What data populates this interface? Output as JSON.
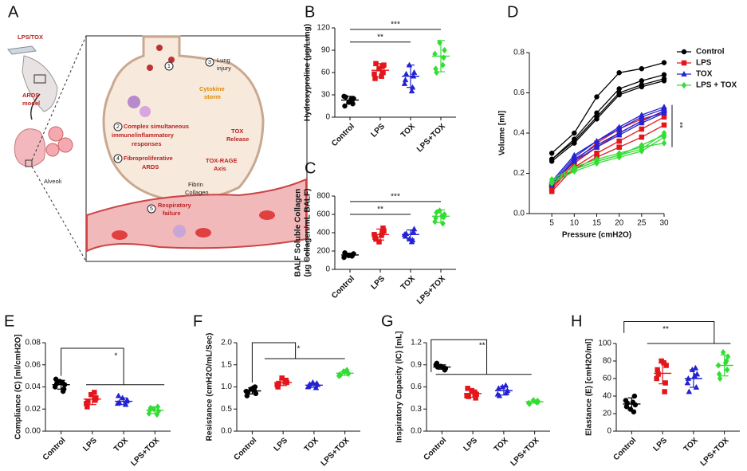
{
  "diagram": {
    "panel": "A",
    "labels": [
      "LPS/TOX",
      "ARDS",
      "model",
      "Alveoli",
      "1",
      "3",
      "Lung",
      "injury",
      "Cytokine",
      "storm",
      "2",
      "Complex simultaneous",
      "immune/inflammatory",
      "responses",
      "TOX",
      "Release",
      "4",
      "Fibroproliferative",
      "ARDS",
      "TOX-RAGE",
      "Axis",
      "Fibrin",
      "Collagen",
      "5",
      "Respiratory",
      "failure"
    ]
  },
  "chart_data": [
    {
      "type": "dot",
      "panel": "B",
      "ylabel": [
        "Hydroxyproline (μg/Lung)"
      ],
      "categories": [
        "Control",
        "LPS",
        "TOX",
        "LPS+TOX"
      ],
      "colors": [
        "#000000",
        "#e3161c",
        "#2323d4",
        "#33dd33"
      ],
      "markers": [
        "circle",
        "square",
        "triangle",
        "diamond"
      ],
      "values": [
        [
          20,
          25,
          28,
          18,
          15,
          22,
          27,
          24
        ],
        [
          65,
          70,
          58,
          60,
          52,
          68,
          72,
          55
        ],
        [
          70,
          60,
          45,
          55,
          50,
          40,
          58,
          35
        ],
        [
          100,
          90,
          85,
          80,
          65,
          70,
          60
        ]
      ],
      "mean": [
        23,
        63,
        55,
        82
      ],
      "sd": [
        5,
        9,
        15,
        21
      ],
      "ylim": [
        0,
        120
      ],
      "yticks": [
        0,
        30,
        60,
        90,
        120
      ],
      "annotations": [
        "**",
        "***"
      ]
    },
    {
      "type": "dot",
      "panel": "C",
      "ylabel": [
        "BALF  Soluble Collagen",
        "(μg Collagen/mL BALF)"
      ],
      "categories": [
        "Control",
        "LPS",
        "TOX",
        "LPS+TOX"
      ],
      "colors": [
        "#000000",
        "#e3161c",
        "#2323d4",
        "#33dd33"
      ],
      "markers": [
        "circle",
        "square",
        "triangle",
        "diamond"
      ],
      "values": [
        [
          150,
          170,
          130,
          160,
          180,
          145,
          165
        ],
        [
          300,
          420,
          380,
          450,
          350,
          400,
          330,
          370
        ],
        [
          330,
          440,
          380,
          410,
          360,
          320,
          390,
          300
        ],
        [
          640,
          600,
          520,
          570,
          560,
          500,
          620,
          580
        ]
      ],
      "mean": [
        157,
        380,
        380,
        580
      ],
      "sd": [
        20,
        60,
        50,
        70
      ],
      "ylim": [
        0,
        800
      ],
      "yticks": [
        0,
        200,
        400,
        600,
        800
      ],
      "annotations": [
        "**",
        "***"
      ]
    },
    {
      "type": "line",
      "panel": "D",
      "ylabel": [
        "Volume [ml]"
      ],
      "xlabel": "Pressure (cmH2O)",
      "x": [
        5,
        10,
        15,
        20,
        25,
        30
      ],
      "xlim": [
        0,
        30
      ],
      "xticks": [
        5,
        10,
        15,
        20,
        25,
        30
      ],
      "ylim": [
        0,
        0.8
      ],
      "yticks": [
        {
          "value": 0,
          "label": "0.0"
        },
        0.2,
        0.4,
        0.6,
        0.8
      ],
      "annotations": [
        "**"
      ],
      "legend": {
        "position": "right",
        "entries": [
          {
            "name": "Control",
            "color": "#000000",
            "marker": "circle"
          },
          {
            "name": "LPS",
            "color": "#e3161c",
            "marker": "square"
          },
          {
            "name": "TOX",
            "color": "#2323d4",
            "marker": "triangle"
          },
          {
            "name": "LPS + TOX",
            "color": "#33dd33",
            "marker": "diamond"
          }
        ]
      },
      "series": [
        {
          "color": "#000000",
          "marker": "circle",
          "values": [
            0.3,
            0.4,
            0.58,
            0.7,
            0.72,
            0.75
          ]
        },
        {
          "color": "#000000",
          "marker": "circle",
          "values": [
            0.27,
            0.37,
            0.5,
            0.62,
            0.66,
            0.69
          ]
        },
        {
          "color": "#000000",
          "marker": "circle",
          "values": [
            0.27,
            0.36,
            0.48,
            0.6,
            0.64,
            0.67
          ]
        },
        {
          "color": "#000000",
          "marker": "circle",
          "values": [
            0.26,
            0.35,
            0.47,
            0.59,
            0.63,
            0.66
          ]
        },
        {
          "color": "#e3161c",
          "marker": "square",
          "values": [
            0.12,
            0.25,
            0.33,
            0.4,
            0.46,
            0.51
          ]
        },
        {
          "color": "#e3161c",
          "marker": "square",
          "values": [
            0.11,
            0.23,
            0.3,
            0.36,
            0.42,
            0.48
          ]
        },
        {
          "color": "#e3161c",
          "marker": "square",
          "values": [
            0.13,
            0.26,
            0.35,
            0.42,
            0.47,
            0.5
          ]
        },
        {
          "color": "#e3161c",
          "marker": "square",
          "values": [
            0.14,
            0.22,
            0.28,
            0.33,
            0.38,
            0.44
          ]
        },
        {
          "color": "#2323d4",
          "marker": "triangle",
          "values": [
            0.15,
            0.28,
            0.36,
            0.42,
            0.48,
            0.52
          ]
        },
        {
          "color": "#2323d4",
          "marker": "triangle",
          "values": [
            0.14,
            0.27,
            0.34,
            0.4,
            0.46,
            0.51
          ]
        },
        {
          "color": "#2323d4",
          "marker": "triangle",
          "values": [
            0.15,
            0.26,
            0.33,
            0.39,
            0.45,
            0.5
          ]
        },
        {
          "color": "#2323d4",
          "marker": "triangle",
          "values": [
            0.16,
            0.29,
            0.36,
            0.43,
            0.49,
            0.53
          ]
        },
        {
          "color": "#33dd33",
          "marker": "diamond",
          "values": [
            0.16,
            0.22,
            0.26,
            0.29,
            0.32,
            0.4
          ]
        },
        {
          "color": "#33dd33",
          "marker": "diamond",
          "values": [
            0.15,
            0.21,
            0.25,
            0.28,
            0.31,
            0.38
          ]
        },
        {
          "color": "#33dd33",
          "marker": "diamond",
          "values": [
            0.17,
            0.23,
            0.27,
            0.3,
            0.33,
            0.35
          ]
        },
        {
          "color": "#33dd33",
          "marker": "diamond",
          "values": [
            0.16,
            0.22,
            0.26,
            0.29,
            0.34,
            0.39
          ]
        }
      ]
    },
    {
      "type": "dot",
      "panel": "E",
      "ylabel": [
        "Compliance (C) [ml/cmH2O]"
      ],
      "categories": [
        "Control",
        "LPS",
        "TOX",
        "LPS+TOX"
      ],
      "colors": [
        "#000000",
        "#e3161c",
        "#2323d4",
        "#33dd33"
      ],
      "markers": [
        "circle",
        "square",
        "triangle",
        "diamond"
      ],
      "values": [
        [
          0.045,
          0.042,
          0.04,
          0.038,
          0.047,
          0.036,
          0.043,
          0.044
        ],
        [
          0.033,
          0.03,
          0.025,
          0.028,
          0.022,
          0.035,
          0.027
        ],
        [
          0.03,
          0.028,
          0.025,
          0.027,
          0.032,
          0.024,
          0.026
        ],
        [
          0.02,
          0.018,
          0.016,
          0.022,
          0.019,
          0.015,
          0.021
        ]
      ],
      "mean": [
        0.042,
        0.029,
        0.027,
        0.019
      ],
      "sd": [
        0.004,
        0.005,
        0.003,
        0.003
      ],
      "ylim": [
        0,
        0.08
      ],
      "yticks": [
        {
          "value": 0,
          "label": "0.00"
        },
        0.02,
        0.04,
        0.06,
        0.08
      ],
      "annotations": [
        "*"
      ]
    },
    {
      "type": "dot",
      "panel": "F",
      "ylabel": [
        "Resistance (cmH2O/mL/Sec)"
      ],
      "categories": [
        "Control",
        "LPS",
        "TOX",
        "LPS+TOX"
      ],
      "colors": [
        "#000000",
        "#e3161c",
        "#2323d4",
        "#33dd33"
      ],
      "markers": [
        "circle",
        "square",
        "triangle",
        "diamond"
      ],
      "values": [
        [
          0.95,
          0.85,
          0.9,
          1.0,
          0.8,
          0.92,
          0.88,
          0.98
        ],
        [
          1.2,
          1.1,
          1.05,
          1.15,
          1.0,
          1.12,
          1.08
        ],
        [
          1.1,
          1.05,
          1.0,
          1.08,
          1.02,
          0.98,
          1.06
        ],
        [
          1.35,
          1.3,
          1.25,
          1.32,
          1.28,
          1.38,
          1.27
        ]
      ],
      "mean": [
        0.91,
        1.1,
        1.04,
        1.31
      ],
      "sd": [
        0.07,
        0.07,
        0.05,
        0.05
      ],
      "ylim": [
        0,
        2.0
      ],
      "yticks": [
        {
          "value": 0,
          "label": "0.0"
        },
        0.5,
        {
          "value": 1,
          "label": "1.0"
        },
        1.5,
        {
          "value": 2,
          "label": "2.0"
        }
      ],
      "annotations": [
        "*"
      ]
    },
    {
      "type": "dot",
      "panel": "G",
      "ylabel": [
        "Inspiratory Capacity (IC) [mL]"
      ],
      "categories": [
        "Control",
        "LPS",
        "TOX",
        "LPS+TOX"
      ],
      "colors": [
        "#000000",
        "#e3161c",
        "#2323d4",
        "#33dd33"
      ],
      "markers": [
        "circle",
        "square",
        "triangle",
        "diamond"
      ],
      "values": [
        [
          0.88,
          0.85,
          0.9,
          0.83,
          0.92,
          0.86,
          0.87
        ],
        [
          0.55,
          0.5,
          0.48,
          0.45,
          0.58,
          0.52,
          0.47
        ],
        [
          0.6,
          0.55,
          0.5,
          0.52,
          0.58,
          0.62,
          0.48
        ],
        [
          0.42,
          0.4,
          0.38,
          0.41,
          0.37,
          0.39
        ]
      ],
      "mean": [
        0.87,
        0.51,
        0.55,
        0.4
      ],
      "sd": [
        0.03,
        0.05,
        0.06,
        0.02
      ],
      "ylim": [
        0,
        1.2
      ],
      "yticks": [
        {
          "value": 0,
          "label": "0.0"
        },
        0.3,
        0.6,
        0.9,
        1.2
      ],
      "annotations": [
        "**"
      ]
    },
    {
      "type": "dot",
      "panel": "H",
      "ylabel": [
        "Elastance (E) [cmH2O/ml]"
      ],
      "categories": [
        "Control",
        "LPS",
        "TOX",
        "LPS+TOX"
      ],
      "colors": [
        "#000000",
        "#e3161c",
        "#2323d4",
        "#33dd33"
      ],
      "markers": [
        "circle",
        "square",
        "triangle",
        "diamond"
      ],
      "values": [
        [
          25,
          30,
          35,
          40,
          28,
          22,
          32,
          33
        ],
        [
          80,
          75,
          60,
          55,
          70,
          45,
          65,
          78
        ],
        [
          70,
          65,
          55,
          50,
          60,
          72,
          45,
          63
        ],
        [
          90,
          85,
          75,
          70,
          65,
          80,
          60,
          78
        ]
      ],
      "mean": [
        31,
        66,
        60,
        75
      ],
      "sd": [
        7,
        12,
        10,
        12
      ],
      "ylim": [
        0,
        100
      ],
      "yticks": [
        0,
        20,
        40,
        60,
        80,
        100
      ],
      "annotations": [
        "**"
      ]
    }
  ]
}
